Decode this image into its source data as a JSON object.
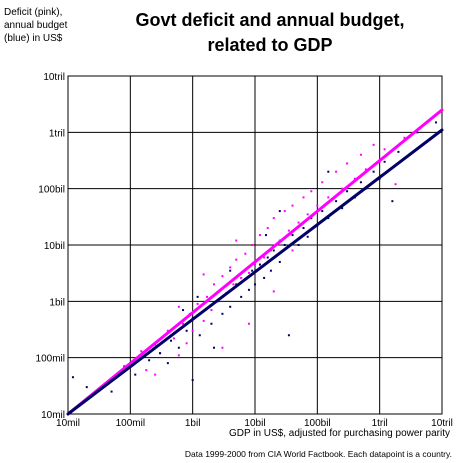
{
  "chart_data": {
    "type": "scatter",
    "title": "Govt deficit and annual budget,\nrelated to GDP",
    "ylabel": "Deficit (pink),\nannual budget\n(blue) in US$",
    "xlabel": "GDP in US$, adjusted for purchasing power parity",
    "footnote": "Data 1999-2000 from CIA World Factbook. Each datapoint is a country.",
    "x_scale": "log",
    "y_scale": "log",
    "xlim": [
      10000000,
      10000000000000
    ],
    "ylim": [
      10000000,
      10000000000000
    ],
    "grid": true,
    "x_ticks": [
      {
        "value": 10000000,
        "label": "10mil"
      },
      {
        "value": 100000000,
        "label": "100mil"
      },
      {
        "value": 1000000000,
        "label": "1bil"
      },
      {
        "value": 10000000000,
        "label": "10bil"
      },
      {
        "value": 100000000000,
        "label": "100bil"
      },
      {
        "value": 1000000000000,
        "label": "1tril"
      },
      {
        "value": 10000000000000,
        "label": "10tril"
      }
    ],
    "y_ticks": [
      {
        "value": 10000000,
        "label": "10mil"
      },
      {
        "value": 100000000,
        "label": "100mil"
      },
      {
        "value": 1000000000,
        "label": "1bil"
      },
      {
        "value": 10000000000,
        "label": "10bil"
      },
      {
        "value": 100000000000,
        "label": "100bil"
      },
      {
        "value": 1000000000000,
        "label": "1tril"
      },
      {
        "value": 10000000000000,
        "label": "10tril"
      }
    ],
    "series": [
      {
        "key": "deficit",
        "color": "#ff00ff",
        "points": [
          [
            100000000,
            80000000
          ],
          [
            150000000,
            130000000
          ],
          [
            180000000,
            60000000
          ],
          [
            250000000,
            170000000
          ],
          [
            300000000,
            120000000
          ],
          [
            400000000,
            300000000
          ],
          [
            500000000,
            220000000
          ],
          [
            600000000,
            110000000
          ],
          [
            700000000,
            400000000
          ],
          [
            800000000,
            180000000
          ],
          [
            900000000,
            600000000
          ],
          [
            1000000000,
            300000000
          ],
          [
            1200000000,
            900000000
          ],
          [
            1500000000,
            450000000
          ],
          [
            1700000000,
            1200000000
          ],
          [
            2000000000,
            700000000
          ],
          [
            2200000000,
            2000000000
          ],
          [
            2500000000,
            1000000000
          ],
          [
            3000000000,
            2800000000
          ],
          [
            3500000000,
            1400000000
          ],
          [
            4000000000,
            4000000000
          ],
          [
            4500000000,
            2000000000
          ],
          [
            5000000000,
            5500000000
          ],
          [
            6000000000,
            2600000000
          ],
          [
            7000000000,
            7000000000
          ],
          [
            8000000000,
            3200000000
          ],
          [
            9000000000,
            10000000000
          ],
          [
            10000000000,
            4500000000
          ],
          [
            12000000000,
            15000000000
          ],
          [
            14000000000,
            6000000000
          ],
          [
            16000000000,
            20000000000
          ],
          [
            18000000000,
            8000000000
          ],
          [
            20000000000,
            30000000000
          ],
          [
            25000000000,
            12000000000
          ],
          [
            30000000000,
            40000000000
          ],
          [
            35000000000,
            18000000000
          ],
          [
            40000000000,
            50000000000
          ],
          [
            50000000000,
            25000000000
          ],
          [
            60000000000,
            70000000000
          ],
          [
            70000000000,
            35000000000
          ],
          [
            80000000000,
            90000000000
          ],
          [
            100000000000,
            50000000000
          ],
          [
            120000000000,
            130000000000
          ],
          [
            150000000000,
            70000000000
          ],
          [
            200000000000,
            200000000000
          ],
          [
            250000000000,
            100000000000
          ],
          [
            300000000000,
            280000000000
          ],
          [
            400000000000,
            150000000000
          ],
          [
            500000000000,
            400000000000
          ],
          [
            600000000000,
            220000000000
          ],
          [
            800000000000,
            600000000000
          ],
          [
            1000000000000,
            300000000000
          ],
          [
            1200000000000,
            500000000000
          ],
          [
            1800000000000,
            120000000000
          ],
          [
            2500000000000,
            800000000000
          ],
          [
            8000000000,
            400000000
          ],
          [
            3000000000,
            150000000
          ],
          [
            20000000000,
            1500000000
          ],
          [
            1500000000,
            3000000000
          ],
          [
            600000000,
            800000000
          ],
          [
            250000000,
            50000000
          ],
          [
            5000000000,
            12000000000
          ],
          [
            40000000000,
            8000000000
          ]
        ]
      },
      {
        "key": "budget",
        "color": "#000066",
        "points": [
          [
            12000000,
            45000000
          ],
          [
            20000000,
            30000000
          ],
          [
            50000000,
            25000000
          ],
          [
            80000000,
            70000000
          ],
          [
            120000000,
            50000000
          ],
          [
            200000000,
            90000000
          ],
          [
            300000000,
            120000000
          ],
          [
            450000000,
            200000000
          ],
          [
            600000000,
            150000000
          ],
          [
            800000000,
            300000000
          ],
          [
            1000000000,
            40000000
          ],
          [
            1000000000,
            500000000
          ],
          [
            1300000000,
            250000000
          ],
          [
            1600000000,
            700000000
          ],
          [
            2000000000,
            400000000
          ],
          [
            2500000000,
            1000000000
          ],
          [
            3000000000,
            600000000
          ],
          [
            3500000000,
            1400000000
          ],
          [
            4000000000,
            800000000
          ],
          [
            5000000000,
            2000000000
          ],
          [
            6000000000,
            1200000000
          ],
          [
            7000000000,
            2500000000
          ],
          [
            8000000000,
            1600000000
          ],
          [
            9000000000,
            3500000000
          ],
          [
            10000000000,
            2000000000
          ],
          [
            12000000000,
            4500000000
          ],
          [
            14000000000,
            2600000000
          ],
          [
            16000000000,
            6000000000
          ],
          [
            18000000000,
            3500000000
          ],
          [
            20000000000,
            8000000000
          ],
          [
            25000000000,
            5000000000
          ],
          [
            30000000000,
            10000000000
          ],
          [
            35000000000,
            250000000
          ],
          [
            40000000000,
            15000000000
          ],
          [
            50000000000,
            10000000000
          ],
          [
            60000000000,
            20000000000
          ],
          [
            70000000000,
            14000000000
          ],
          [
            80000000000,
            30000000000
          ],
          [
            100000000000,
            22000000000
          ],
          [
            120000000000,
            40000000000
          ],
          [
            150000000000,
            30000000000
          ],
          [
            200000000000,
            60000000000
          ],
          [
            250000000000,
            45000000000
          ],
          [
            300000000000,
            90000000000
          ],
          [
            400000000000,
            70000000000
          ],
          [
            500000000000,
            130000000000
          ],
          [
            600000000000,
            100000000000
          ],
          [
            800000000000,
            200000000000
          ],
          [
            1000000000000,
            150000000000
          ],
          [
            1200000000000,
            300000000000
          ],
          [
            1600000000000,
            60000000000
          ],
          [
            2000000000000,
            450000000000
          ],
          [
            4000000000000,
            1000000000000
          ],
          [
            8000000000000,
            1500000000000
          ],
          [
            1200000000,
            1200000000
          ],
          [
            4000000000,
            3500000000
          ],
          [
            15000000000,
            15000000000
          ],
          [
            400000000,
            80000000
          ],
          [
            700000000,
            700000000
          ],
          [
            2200000000,
            150000000
          ],
          [
            25000000000,
            40000000000
          ],
          [
            150000000000,
            200000000000
          ]
        ]
      }
    ],
    "trend_lines": [
      {
        "key": "deficit-trend",
        "color": "#ff00ff",
        "points": [
          [
            10000000,
            10000000
          ],
          [
            10000000000000,
            2500000000000
          ]
        ]
      },
      {
        "key": "budget-trend",
        "color": "#000066",
        "points": [
          [
            10000000,
            10000000
          ],
          [
            10000000000000,
            1100000000000
          ]
        ]
      }
    ]
  }
}
